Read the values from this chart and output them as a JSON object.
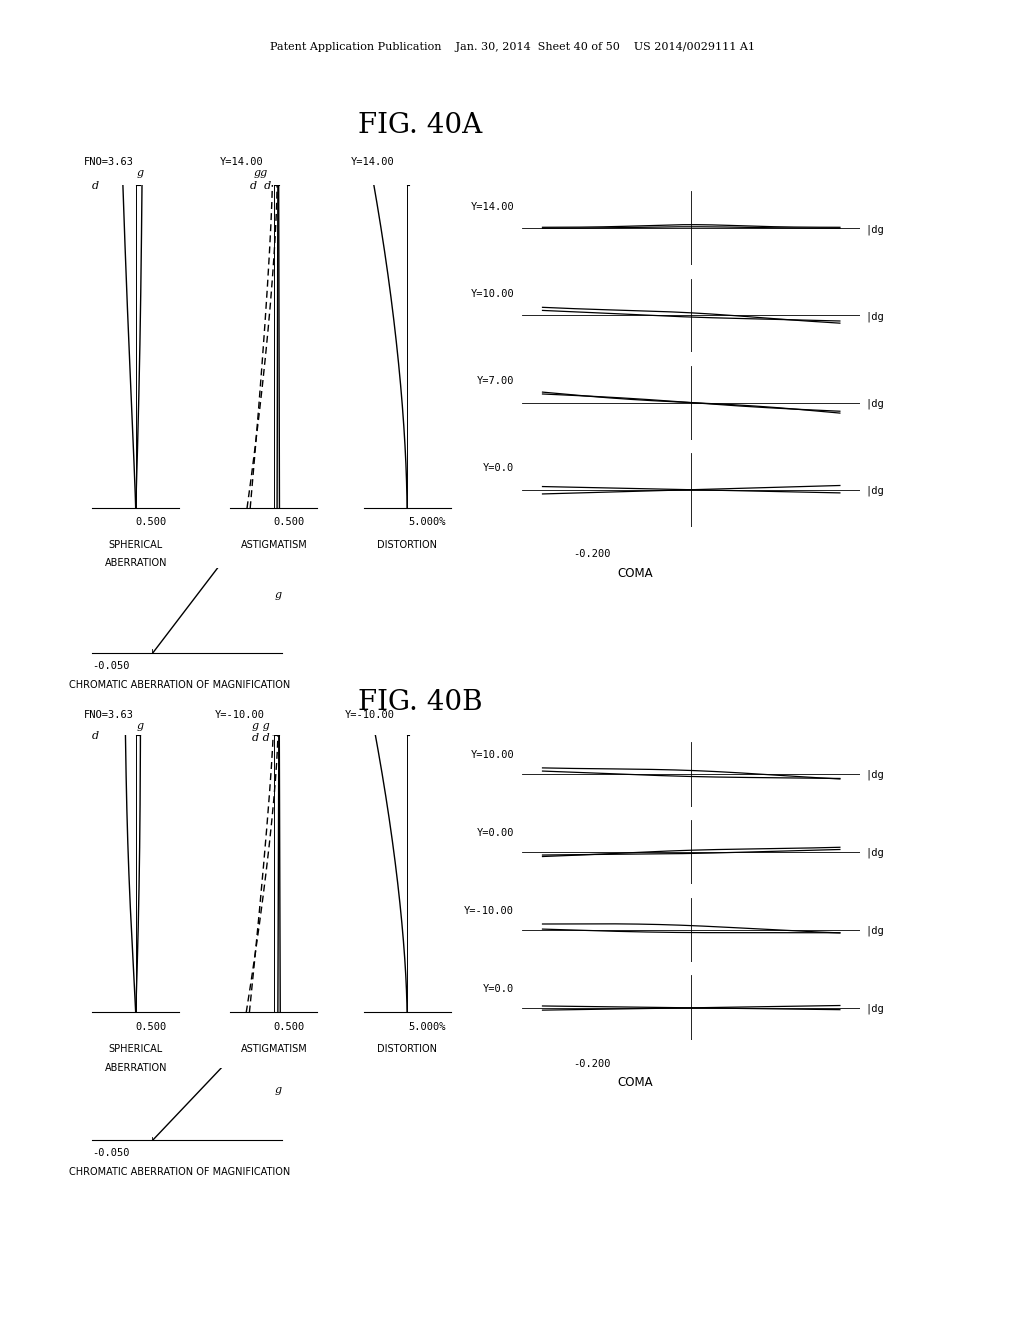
{
  "title_header": "Patent Application Publication    Jan. 30, 2014  Sheet 40 of 50    US 2014/0029111 A1",
  "fig_40a_title": "FIG. 40A",
  "fig_40b_title": "FIG. 40B",
  "background_color": "#ffffff",
  "text_color": "#000000",
  "fig_a": {
    "spherical_fno": "FNO=3.63",
    "spherical_g": "g",
    "spherical_d": "d",
    "astigmatism_ylabel": "Y=14.00",
    "astigmatism_gg": "gg",
    "astigmatism_dd": "d  d",
    "distortion_ylabel": "Y=14.00",
    "xlabel_sa": "0.500",
    "xlabel_ast": "0.500",
    "xlabel_dist": "5.000%",
    "label_sa": "SPHERICAL\nABERRATION",
    "label_ast": "ASTIGMATISM",
    "label_dist": "DISTORTION",
    "chrom_xlabel": "-0.050",
    "chrom_label": "CHROMATIC ABERRATION OF MAGNIFICATION",
    "chrom_g": "g",
    "coma_labels": [
      "Y=14.00",
      "Y=10.00",
      "Y=7.00",
      "Y=0.0"
    ],
    "coma_xlabel": "-0.200",
    "coma_title": "COMA"
  },
  "fig_b": {
    "spherical_fno": "FNO=3.63",
    "spherical_g": "g",
    "spherical_d": "d",
    "astigmatism_ylabel": "Y=-10.00",
    "astigmatism_gg": "g g",
    "astigmatism_dd": "d d",
    "distortion_ylabel": "Y=-10.00",
    "xlabel_sa": "0.500",
    "xlabel_ast": "0.500",
    "xlabel_dist": "5.000%",
    "label_sa": "SPHERICAL\nABERRATION",
    "label_ast": "ASTIGMATISM",
    "label_dist": "DISTORTION",
    "chrom_xlabel": "-0.050",
    "chrom_label": "CHROMATIC ABERRATION OF MAGNIFICATION",
    "chrom_g": "g",
    "coma_labels": [
      "Y=10.00",
      "Y=0.00",
      "Y=-10.00",
      "Y=0.0"
    ],
    "coma_xlabel": "-0.200",
    "coma_title": "COMA"
  }
}
